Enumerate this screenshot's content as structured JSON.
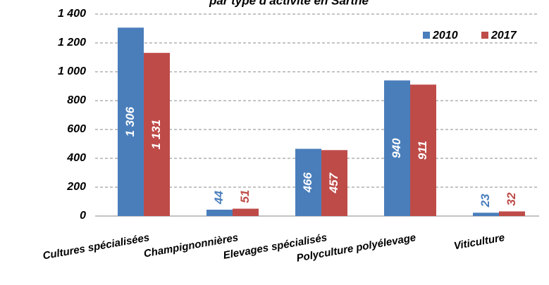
{
  "chart_data": {
    "type": "bar",
    "title": "par type d'activité en Sarthe",
    "categories": [
      "Cultures spécialisées",
      "Champignonnières",
      "Elevages spécialisés",
      "Polyculture polyélevage",
      "Viticulture"
    ],
    "series": [
      {
        "name": "2010",
        "color": "#4a7ebb",
        "values": [
          1306,
          44,
          466,
          940,
          23
        ],
        "value_labels": [
          "1 306",
          "44",
          "466",
          "940",
          "23"
        ]
      },
      {
        "name": "2017",
        "color": "#be4b48",
        "values": [
          1131,
          51,
          457,
          911,
          32
        ],
        "value_labels": [
          "1 131",
          "51",
          "457",
          "911",
          "32"
        ]
      }
    ],
    "ylim": [
      0,
      1400
    ],
    "yticks": [
      0,
      200,
      400,
      600,
      800,
      {
        "value": 1000,
        "label": "1 000"
      },
      {
        "value": 1200,
        "label": "1 200"
      },
      {
        "value": 1400,
        "label": "1 400"
      }
    ],
    "grid": true,
    "legend": "top-right"
  }
}
